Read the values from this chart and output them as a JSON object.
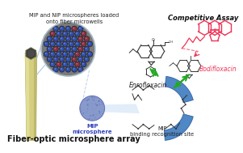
{
  "bg_color": "#ffffff",
  "title_text": "Fiber-optic microsphere array",
  "title_fontsize": 7,
  "label_mip_microspheres": "MIP and NIP microspheres loaded\nonto fiber microwells",
  "label_mip_sphere": "MIP\nmicrosphere",
  "label_mip_site": "MIP\nbinding recognition site",
  "label_competitive": "Competitive Assay",
  "label_enrofloxacin": "Enrofloxacin",
  "label_bodifloxacin": "Bodifloxacin",
  "fiber_color_light": "#e8e4a0",
  "fiber_color_mid": "#d4cf80",
  "fiber_color_dark": "#b0ab60",
  "fiber_inner_color": "#444444",
  "disk_bg_color": "#999999",
  "disk_edge_color": "#aabbcc",
  "well_dark": "#1a1a2e",
  "well_blue": "#3355bb",
  "well_red": "#993344",
  "mip_sphere_color": "#8899cc",
  "mip_sphere_edge": "#5566aa",
  "blue_ribbon_color": "#3d7abf",
  "blue_ribbon_dark": "#2a5a9f",
  "arrow_color": "#22aa22",
  "bodifloxacin_color": "#ee3355",
  "enrofloxacin_color": "#333333",
  "connector_color": "#99bbdd"
}
